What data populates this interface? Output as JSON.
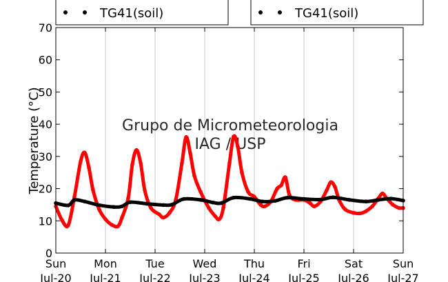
{
  "chart_data": {
    "type": "line",
    "title": "",
    "xlabel": "",
    "ylabel": "Temperature (°C)",
    "ylim": [
      0,
      70
    ],
    "yticks": [
      0,
      10,
      20,
      30,
      40,
      50,
      60,
      70
    ],
    "xlim": [
      "2014-07-20 00:00",
      "2014-07-27 00:00"
    ],
    "xticks": [
      {
        "line1": "Sun",
        "line2": "Jul-20"
      },
      {
        "line1": "Mon",
        "line2": "Jul-21"
      },
      {
        "line1": "Tue",
        "line2": "Jul-22"
      },
      {
        "line1": "Wed",
        "line2": "Jul-23"
      },
      {
        "line1": "Thu",
        "line2": "Jul-24"
      },
      {
        "line1": "Fri",
        "line2": "Jul-25"
      },
      {
        "line1": "Sat",
        "line2": "Jul-26"
      },
      {
        "line1": "Sun",
        "line2": "Jul-27"
      }
    ],
    "grid": "vertical",
    "legend_placement": "top",
    "watermark": [
      "Grupo de Micrometeorologia",
      "IAG / USP"
    ],
    "series": [
      {
        "name": "TG41(soil)",
        "color": "#ff0000",
        "points": [
          [
            "2014-07-20 00:00",
            14.5
          ],
          [
            "2014-07-20 03:00",
            10.2
          ],
          [
            "2014-07-20 06:00",
            8.6
          ],
          [
            "2014-07-20 09:00",
            17.5
          ],
          [
            "2014-07-20 12:00",
            28.5
          ],
          [
            "2014-07-20 14:00",
            31.2
          ],
          [
            "2014-07-20 16:00",
            26.5
          ],
          [
            "2014-07-20 18:00",
            19.5
          ],
          [
            "2014-07-20 21:00",
            13.5
          ],
          [
            "2014-07-21 00:00",
            10.5
          ],
          [
            "2014-07-21 03:00",
            8.8
          ],
          [
            "2014-07-21 06:00",
            8.3
          ],
          [
            "2014-07-21 08:00",
            11.0
          ],
          [
            "2014-07-21 11:00",
            17.0
          ],
          [
            "2014-07-21 13:00",
            27.5
          ],
          [
            "2014-07-21 15:00",
            32.0
          ],
          [
            "2014-07-21 17:00",
            28.0
          ],
          [
            "2014-07-21 19:00",
            19.5
          ],
          [
            "2014-07-21 22:00",
            14.0
          ],
          [
            "2014-07-22 02:00",
            12.0
          ],
          [
            "2014-07-22 04:00",
            11.0
          ],
          [
            "2014-07-22 07:00",
            12.5
          ],
          [
            "2014-07-22 10:00",
            16.5
          ],
          [
            "2014-07-22 13:00",
            28.0
          ],
          [
            "2014-07-22 15:00",
            36.0
          ],
          [
            "2014-07-22 17:00",
            31.0
          ],
          [
            "2014-07-22 19:00",
            24.0
          ],
          [
            "2014-07-22 22:00",
            19.0
          ],
          [
            "2014-07-23 02:00",
            14.0
          ],
          [
            "2014-07-23 05:00",
            11.5
          ],
          [
            "2014-07-23 07:00",
            10.5
          ],
          [
            "2014-07-23 09:00",
            14.0
          ],
          [
            "2014-07-23 12:00",
            28.0
          ],
          [
            "2014-07-23 14:00",
            36.2
          ],
          [
            "2014-07-23 16:00",
            33.0
          ],
          [
            "2014-07-23 18:00",
            25.0
          ],
          [
            "2014-07-23 21:00",
            19.0
          ],
          [
            "2014-07-24 00:00",
            17.5
          ],
          [
            "2014-07-24 03:00",
            15.0
          ],
          [
            "2014-07-24 05:00",
            14.5
          ],
          [
            "2014-07-24 08:00",
            16.0
          ],
          [
            "2014-07-24 11:00",
            20.0
          ],
          [
            "2014-07-24 13:00",
            21.0
          ],
          [
            "2014-07-24 15:00",
            23.5
          ],
          [
            "2014-07-24 17:00",
            18.0
          ],
          [
            "2014-07-24 20:00",
            16.5
          ],
          [
            "2014-07-25 00:00",
            16.5
          ],
          [
            "2014-07-25 03:00",
            15.5
          ],
          [
            "2014-07-25 05:00",
            14.5
          ],
          [
            "2014-07-25 08:00",
            16.0
          ],
          [
            "2014-07-25 11:00",
            19.5
          ],
          [
            "2014-07-25 13:00",
            22.0
          ],
          [
            "2014-07-25 15:00",
            20.5
          ],
          [
            "2014-07-25 17:00",
            16.5
          ],
          [
            "2014-07-25 20:00",
            13.5
          ],
          [
            "2014-07-26 00:00",
            12.5
          ],
          [
            "2014-07-26 03:00",
            12.3
          ],
          [
            "2014-07-26 06:00",
            13.0
          ],
          [
            "2014-07-26 09:00",
            14.5
          ],
          [
            "2014-07-26 12:00",
            17.0
          ],
          [
            "2014-07-26 14:00",
            18.5
          ],
          [
            "2014-07-26 16:00",
            17.0
          ],
          [
            "2014-07-26 19:00",
            15.0
          ],
          [
            "2014-07-26 22:00",
            14.0
          ],
          [
            "2014-07-27 00:00",
            14.0
          ]
        ]
      },
      {
        "name": "TG41(soil)",
        "color": "#000000",
        "points": [
          [
            "2014-07-20 00:00",
            15.5
          ],
          [
            "2014-07-20 06:00",
            14.8
          ],
          [
            "2014-07-20 09:00",
            16.5
          ],
          [
            "2014-07-20 14:00",
            16.0
          ],
          [
            "2014-07-20 20:00",
            15.0
          ],
          [
            "2014-07-21 04:00",
            14.3
          ],
          [
            "2014-07-21 08:00",
            14.5
          ],
          [
            "2014-07-21 12:00",
            15.8
          ],
          [
            "2014-07-21 20:00",
            15.3
          ],
          [
            "2014-07-22 04:00",
            14.9
          ],
          [
            "2014-07-22 08:00",
            15.0
          ],
          [
            "2014-07-22 14:00",
            16.8
          ],
          [
            "2014-07-22 22:00",
            16.5
          ],
          [
            "2014-07-23 04:00",
            15.7
          ],
          [
            "2014-07-23 08:00",
            15.5
          ],
          [
            "2014-07-23 14:00",
            17.2
          ],
          [
            "2014-07-23 22:00",
            16.8
          ],
          [
            "2014-07-24 04:00",
            16.0
          ],
          [
            "2014-07-24 10:00",
            16.2
          ],
          [
            "2014-07-24 16:00",
            17.2
          ],
          [
            "2014-07-25 00:00",
            16.8
          ],
          [
            "2014-07-25 08:00",
            16.6
          ],
          [
            "2014-07-25 14:00",
            17.3
          ],
          [
            "2014-07-25 22:00",
            16.5
          ],
          [
            "2014-07-26 06:00",
            16.0
          ],
          [
            "2014-07-26 12:00",
            16.5
          ],
          [
            "2014-07-26 18:00",
            16.9
          ],
          [
            "2014-07-27 00:00",
            16.3
          ]
        ]
      }
    ]
  }
}
